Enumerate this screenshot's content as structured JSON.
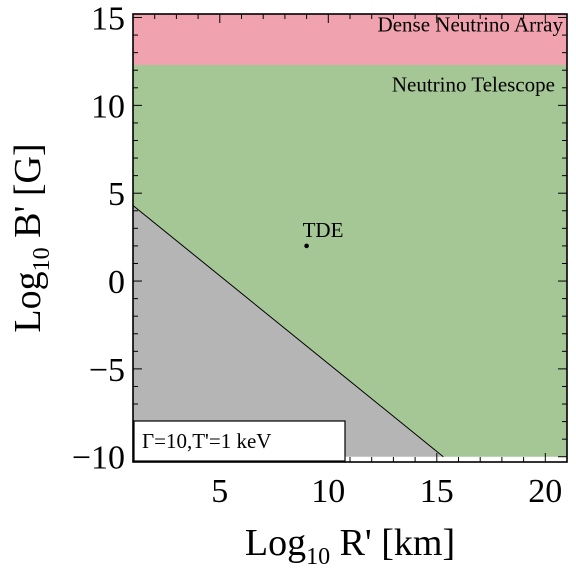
{
  "chart_data": {
    "type": "area",
    "xlabel_main": "Log",
    "xlabel_sub": "10",
    "xlabel_rest": " R' [km]",
    "ylabel_main": "Log",
    "ylabel_sub": "10",
    "ylabel_rest": " B' [G]",
    "xlim": [
      1,
      21
    ],
    "ylim": [
      -10.3,
      15.2
    ],
    "x_ticks": [
      5,
      10,
      15,
      20
    ],
    "x_tick_labels": [
      "5",
      "10",
      "15",
      "20"
    ],
    "y_ticks": [
      -10,
      -5,
      0,
      5,
      10,
      15
    ],
    "y_tick_labels": [
      "−10",
      "−5",
      "0",
      "5",
      "10",
      "15"
    ],
    "regions": [
      {
        "label": "Dense Neutrino Array",
        "color": "#f0a3ae",
        "polygon": [
          [
            1,
            12.3
          ],
          [
            21,
            12.3
          ],
          [
            21,
            15.2
          ],
          [
            1,
            15.2
          ]
        ]
      },
      {
        "label": "Neutrino Telescope",
        "color": "#a5c796",
        "polygon": [
          [
            1,
            4.3
          ],
          [
            15.3,
            -10
          ],
          [
            21,
            -10
          ],
          [
            21,
            12.3
          ],
          [
            1,
            12.3
          ]
        ]
      },
      {
        "label": "",
        "color": "#b5b5b5",
        "polygon": [
          [
            1,
            -10
          ],
          [
            15.3,
            -10
          ],
          [
            1,
            4.3
          ]
        ]
      }
    ],
    "boundary_line": [
      [
        1,
        4.3
      ],
      [
        15.3,
        -10
      ]
    ],
    "points": [
      {
        "label": "TDE",
        "x": 9,
        "y": 2
      }
    ],
    "legend_text": "Γ=10,T'=1 keV",
    "grid": false
  }
}
